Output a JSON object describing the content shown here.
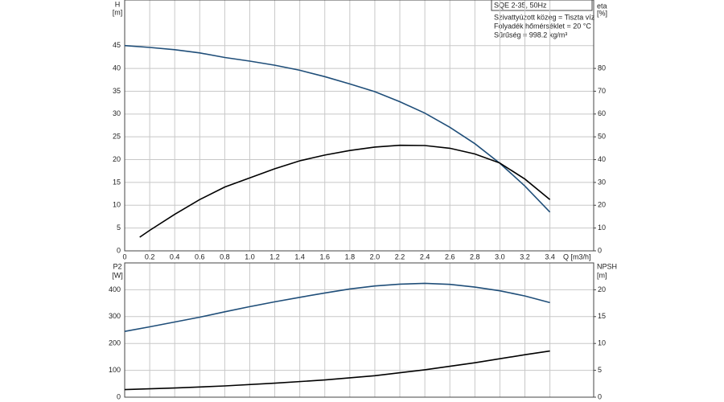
{
  "chart_data": [
    {
      "type": "line",
      "title": "SQE 2-35, 50Hz",
      "annotations": [
        "Szivattyúzott közeg = Tiszta víz",
        "Folyadék hőmérséklet = 20 °C",
        "Sűrűség = 998.2 kg/m³"
      ],
      "ylabel": "H",
      "ylabel_unit": "[m]",
      "y2label": "eta",
      "y2label_unit": "[%]",
      "xlabel": "Q [m3/h]",
      "xlim": [
        0,
        3.75
      ],
      "xticks": [
        0,
        0.2,
        0.4,
        0.6,
        0.8,
        {
          "value": 1,
          "label": "1.0"
        },
        1.2,
        1.4,
        1.6,
        1.8,
        {
          "value": 2,
          "label": "2.0"
        },
        2.2,
        2.4,
        2.6,
        2.8,
        {
          "value": 3,
          "label": "3.0"
        },
        3.2,
        3.4
      ],
      "ylim": [
        0,
        55
      ],
      "yticks": [
        0,
        5,
        10,
        15,
        20,
        25,
        30,
        35,
        40,
        45
      ],
      "y2lim": [
        0,
        110
      ],
      "y2ticks": [
        0,
        10,
        20,
        30,
        40,
        50,
        60,
        70,
        80
      ],
      "grid": true,
      "series": [
        {
          "name": "H",
          "color": "#1f4e79",
          "x": [
            0,
            0.2,
            0.4,
            0.6,
            0.8,
            1.0,
            1.2,
            1.4,
            1.6,
            1.8,
            2.0,
            2.2,
            2.4,
            2.6,
            2.8,
            3.0,
            3.2,
            3.4
          ],
          "values": [
            45,
            44.6,
            44.1,
            43.4,
            42.4,
            41.6,
            40.7,
            39.6,
            38.2,
            36.6,
            34.9,
            32.7,
            30.2,
            27.1,
            23.5,
            19.2,
            14.2,
            8.5
          ]
        },
        {
          "name": "eta",
          "color": "#000000",
          "axis": "y2",
          "x": [
            0.12,
            0.2,
            0.4,
            0.6,
            0.8,
            1.0,
            1.2,
            1.4,
            1.6,
            1.8,
            2.0,
            2.2,
            2.4,
            2.6,
            2.8,
            3.0,
            3.2,
            3.4
          ],
          "values": [
            6,
            9,
            16,
            22.5,
            28,
            32,
            36,
            39.5,
            42,
            44,
            45.5,
            46.3,
            46.2,
            45,
            42.5,
            38.5,
            31.5,
            22.5
          ]
        }
      ]
    },
    {
      "type": "line",
      "ylabel": "P2",
      "ylabel_unit": "[W]",
      "y2label": "NPSH",
      "y2label_unit": "[m]",
      "xlim": [
        0,
        3.75
      ],
      "xticks": [
        0,
        0.2,
        0.4,
        0.6,
        0.8,
        1,
        1.2,
        1.4,
        1.6,
        1.8,
        2,
        2.2,
        2.4,
        2.6,
        2.8,
        3,
        3.2,
        3.4
      ],
      "ylim": [
        0,
        500
      ],
      "yticks": [
        0,
        100,
        200,
        300,
        400
      ],
      "y2lim": [
        0,
        25
      ],
      "y2ticks": [
        0,
        5,
        10,
        15,
        20
      ],
      "grid": true,
      "series": [
        {
          "name": "P2",
          "color": "#1f4e79",
          "x": [
            0,
            0.2,
            0.4,
            0.6,
            0.8,
            1.0,
            1.2,
            1.4,
            1.6,
            1.8,
            2.0,
            2.2,
            2.4,
            2.6,
            2.8,
            3.0,
            3.2,
            3.4
          ],
          "values": [
            245,
            262,
            280,
            298,
            318,
            337,
            355,
            372,
            388,
            403,
            414,
            421,
            424,
            420,
            410,
            396,
            377,
            352
          ]
        },
        {
          "name": "NPSH",
          "color": "#000000",
          "axis": "y2",
          "x": [
            0,
            0.4,
            0.8,
            1.2,
            1.6,
            2.0,
            2.4,
            2.8,
            3.2,
            3.4
          ],
          "values": [
            1.4,
            1.7,
            2.1,
            2.6,
            3.2,
            4.0,
            5.1,
            6.4,
            7.9,
            8.6
          ]
        }
      ]
    }
  ]
}
